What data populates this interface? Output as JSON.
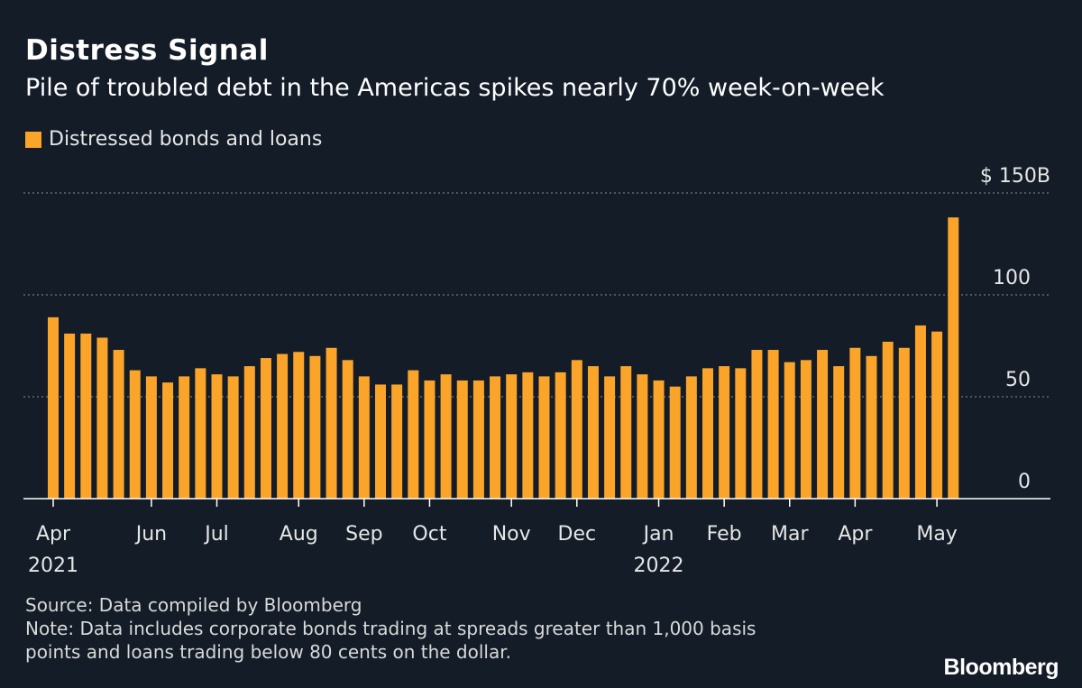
{
  "header": {
    "title": "Distress Signal",
    "subtitle": "Pile of troubled debt in the Americas spikes nearly 70% week-on-week"
  },
  "footer": {
    "source": "Source: Data compiled by Bloomberg",
    "note_line1": "Note: Data includes corporate bonds trading at spreads greater than 1,000 basis",
    "note_line2": "points and loans trading below 80 cents on the dollar.",
    "brand": "Bloomberg"
  },
  "colors": {
    "background": "#131c27",
    "bar": "#fba42a",
    "grid": "#8a8f96",
    "text": "#e6e6e6"
  },
  "chart_data": {
    "type": "bar",
    "title": "Distress Signal",
    "subtitle": "Pile of troubled debt in the Americas spikes nearly 70% week-on-week",
    "xlabel": "",
    "ylabel": "",
    "ylim": [
      0,
      150
    ],
    "grid": true,
    "legend": "top-left",
    "y_ticks": [
      {
        "value": 150,
        "label": "$ 150B"
      },
      {
        "value": 100,
        "label": "100"
      },
      {
        "value": 50,
        "label": "50"
      },
      {
        "value": 0,
        "label": "0"
      }
    ],
    "x_tick_labels": [
      {
        "index": 0,
        "label": "Apr",
        "sublabel": "2021"
      },
      {
        "index": 6,
        "label": "Jun",
        "sublabel": ""
      },
      {
        "index": 10,
        "label": "Jul",
        "sublabel": ""
      },
      {
        "index": 15,
        "label": "Aug",
        "sublabel": ""
      },
      {
        "index": 19,
        "label": "Sep",
        "sublabel": ""
      },
      {
        "index": 23,
        "label": "Oct",
        "sublabel": ""
      },
      {
        "index": 28,
        "label": "Nov",
        "sublabel": ""
      },
      {
        "index": 32,
        "label": "Dec",
        "sublabel": ""
      },
      {
        "index": 37,
        "label": "Jan",
        "sublabel": "2022"
      },
      {
        "index": 41,
        "label": "Feb",
        "sublabel": ""
      },
      {
        "index": 45,
        "label": "Mar",
        "sublabel": ""
      },
      {
        "index": 49,
        "label": "Apr",
        "sublabel": ""
      },
      {
        "index": 54,
        "label": "May",
        "sublabel": ""
      }
    ],
    "series": [
      {
        "name": "Distressed bonds and loans",
        "values": [
          89,
          81,
          81,
          79,
          73,
          63,
          60,
          57,
          60,
          64,
          61,
          60,
          65,
          69,
          71,
          72,
          70,
          74,
          68,
          60,
          56,
          56,
          63,
          58,
          61,
          58,
          58,
          60,
          61,
          62,
          60,
          62,
          68,
          65,
          60,
          65,
          61,
          58,
          55,
          60,
          64,
          65,
          64,
          73,
          73,
          67,
          68,
          73,
          65,
          74,
          70,
          77,
          74,
          85,
          82,
          138
        ]
      }
    ]
  }
}
